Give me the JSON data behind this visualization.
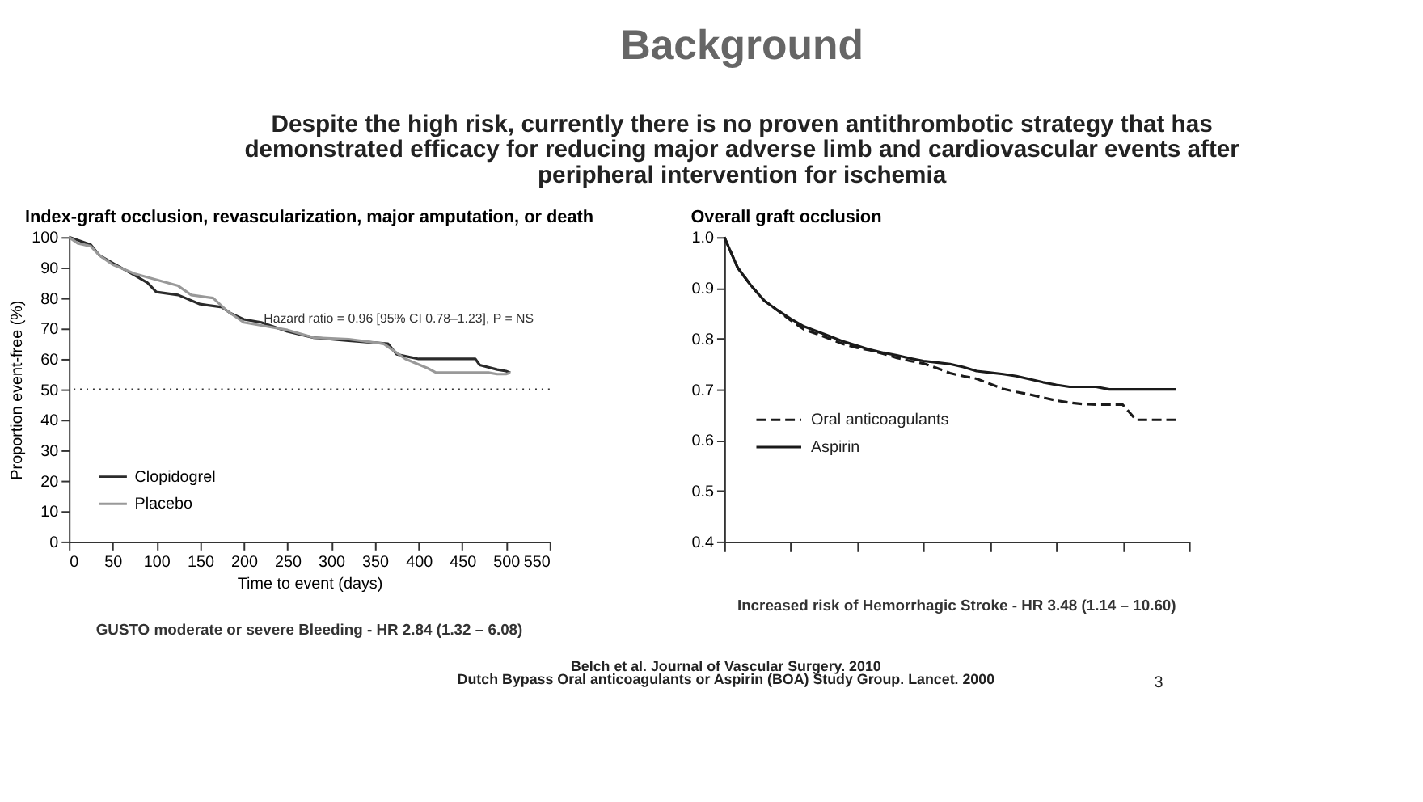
{
  "chart_data": [
    {
      "type": "other",
      "title": "Background",
      "subtitle": "Despite the high risk, currently there is no proven antithrombotic strategy that has demonstrated efficacy for reducing major adverse limb and cardiovascular events after peripheral intervention for ischemia",
      "annotations": [
        "Belch et al. Journal of Vascular Surgery. 2010",
        "Dutch Bypass Oral anticoagulants or Aspirin (BOA) Study Group. Lancet. 2000",
        "3"
      ]
    },
    {
      "type": "line",
      "title": "Index-graft occlusion, revascularization, major amputation, or death",
      "xlabel": "Time to event (days)",
      "ylabel": "Proportion event-free (%)",
      "xlim": [
        0,
        550
      ],
      "xticks": [
        0,
        50,
        100,
        150,
        200,
        250,
        300,
        350,
        400,
        450,
        500,
        550
      ],
      "ylim": [
        0,
        100
      ],
      "yticks": [
        0,
        10,
        20,
        30,
        40,
        50,
        60,
        70,
        80,
        90,
        100
      ],
      "series": [
        {
          "name": "Clopidogrel",
          "color": "#2b2b2b",
          "x": [
            0,
            10,
            25,
            35,
            50,
            75,
            90,
            100,
            125,
            150,
            175,
            185,
            200,
            220,
            250,
            280,
            320,
            365,
            375,
            400,
            420,
            465,
            470,
            490,
            500,
            505
          ],
          "values": [
            100,
            99,
            97.5,
            94,
            91.5,
            87.5,
            85,
            82,
            81,
            78,
            77,
            75,
            73,
            72,
            69,
            67,
            66,
            65,
            61.5,
            60,
            60,
            60,
            58,
            56.5,
            56,
            55.5
          ]
        },
        {
          "name": "Placebo",
          "color": "#999999",
          "x": [
            0,
            10,
            25,
            35,
            50,
            75,
            100,
            125,
            140,
            165,
            180,
            200,
            220,
            250,
            280,
            320,
            360,
            370,
            385,
            410,
            420,
            480,
            490,
            500,
            505
          ],
          "values": [
            100,
            98,
            97,
            94,
            91,
            88,
            86,
            84,
            81,
            80,
            76,
            72,
            71,
            69.5,
            67,
            66.5,
            65,
            63,
            60,
            57,
            55.5,
            55.5,
            55,
            55,
            55.5
          ]
        }
      ],
      "ref_lines": [
        {
          "axis": "y",
          "value": 50,
          "line_style": "dotted",
          "color": "#333333"
        }
      ],
      "legend": "bottom left",
      "grid": false,
      "line_style": "solid",
      "annotations": [
        "Hazard ratio = 0.96 [95% CI 0.78–1.23], P = NS",
        "GUSTO moderate or severe Bleeding - HR 2.84 (1.32 – 6.08)"
      ]
    },
    {
      "type": "line",
      "title": "Overall graft occlusion",
      "tick_labels": "y",
      "categories": [
        null,
        null,
        null,
        null,
        null,
        null,
        null,
        null,
        null,
        null,
        null,
        null,
        null,
        null,
        null,
        null,
        null,
        null,
        null,
        null,
        null,
        null,
        null,
        null,
        null,
        null,
        null,
        null,
        null,
        null,
        null,
        null,
        null,
        null,
        null,
        null
      ],
      "ylim": [
        0.4,
        1.0
      ],
      "yticks": [
        0.4,
        0.5,
        0.6,
        0.7,
        0.8,
        0.9,
        {
          "value": 1.0,
          "label": "1.0"
        }
      ],
      "series": [
        {
          "name": "Oral anticoagulants",
          "color": "#1a1a1a",
          "line_style": "dashed",
          "values": [
            1.0,
            0.94,
            0.905,
            0.875,
            0.856,
            0.836,
            0.818,
            0.809,
            0.799,
            0.789,
            0.782,
            0.777,
            0.77,
            0.762,
            0.756,
            0.751,
            0.742,
            0.732,
            0.726,
            0.721,
            0.711,
            0.701,
            0.695,
            0.69,
            0.684,
            0.678,
            0.674,
            0.671,
            0.67,
            0.67,
            0.67,
            0.64,
            0.64,
            0.64,
            0.64,
            null
          ]
        },
        {
          "name": "Aspirin",
          "color": "#1a1a1a",
          "line_style": "solid",
          "values": [
            1.0,
            0.94,
            0.905,
            0.875,
            0.856,
            0.839,
            0.824,
            0.814,
            0.804,
            0.794,
            0.786,
            0.778,
            0.772,
            0.767,
            0.761,
            0.756,
            0.753,
            0.75,
            0.744,
            0.736,
            0.733,
            0.73,
            0.726,
            0.72,
            0.714,
            0.709,
            0.705,
            0.705,
            0.705,
            0.7,
            0.7,
            0.7,
            0.7,
            0.7,
            0.7,
            null
          ]
        }
      ],
      "legend": "left",
      "grid": false,
      "annotations": [
        "Increased risk of Hemorrhagic Stroke - HR 3.48 (1.14 – 10.60)"
      ]
    }
  ]
}
